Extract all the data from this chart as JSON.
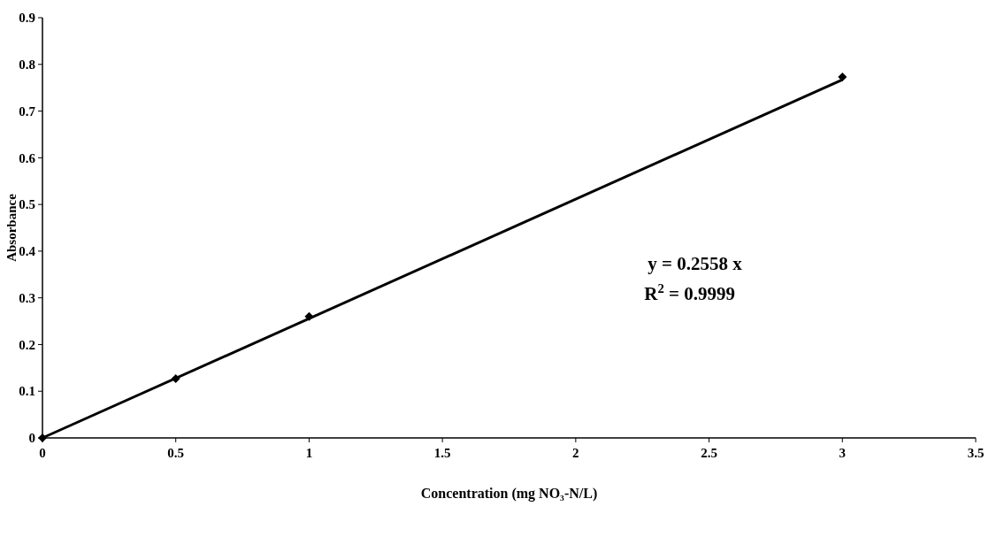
{
  "chart_data": {
    "type": "scatter",
    "xlabel": "Concentration (mg NO₃-N/L)",
    "ylabel": "Absorbance",
    "xlim": [
      0,
      3.5
    ],
    "xticks": [
      0,
      0.5,
      1,
      1.5,
      2,
      2.5,
      3,
      3.5
    ],
    "ylim": [
      0,
      0.9
    ],
    "yticks": [
      0,
      0.1,
      0.2,
      0.3,
      0.4,
      0.5,
      0.6,
      0.7,
      0.8,
      0.9
    ],
    "grid": false,
    "series": [
      {
        "color": "#000000",
        "marker": "diamond",
        "x": [
          0,
          0.5,
          1,
          3
        ],
        "values": [
          0,
          0.127,
          0.26,
          0.773
        ]
      },
      {
        "type": "line",
        "color": "#000000",
        "marker": "none",
        "line_style": "solid",
        "x": [
          0,
          3
        ],
        "values": [
          0,
          0.767
        ]
      }
    ],
    "annotations": [
      "y = 0.2558 x",
      "R$^{2}$ = 0.9999"
    ]
  }
}
